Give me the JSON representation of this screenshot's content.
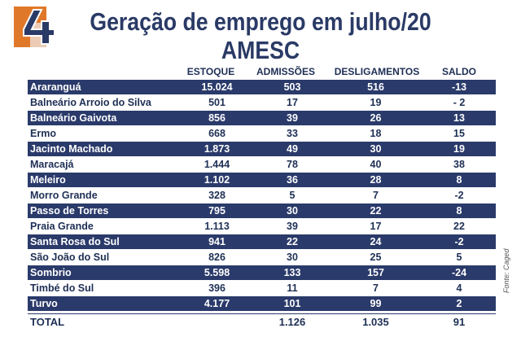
{
  "brand": {
    "logo_text": "4",
    "orange": "#e0782a",
    "blue": "#2a3a6a"
  },
  "title": {
    "line1": "Geração de emprego em julho/20",
    "line2": "AMESC"
  },
  "columns": [
    "ESTOQUE",
    "ADMISSÕES",
    "DESLIGAMENTOS",
    "SALDO"
  ],
  "rows": [
    {
      "city": "Araranguá",
      "estoque": "15.024",
      "admissoes": "503",
      "desligamentos": "516",
      "saldo": "-13"
    },
    {
      "city": "Balneário Arroio do Silva",
      "estoque": "501",
      "admissoes": "17",
      "desligamentos": "19",
      "saldo": "- 2"
    },
    {
      "city": "Balneário Gaivota",
      "estoque": "856",
      "admissoes": "39",
      "desligamentos": "26",
      "saldo": "13"
    },
    {
      "city": "Ermo",
      "estoque": "668",
      "admissoes": "33",
      "desligamentos": "18",
      "saldo": "15"
    },
    {
      "city": "Jacinto Machado",
      "estoque": "1.873",
      "admissoes": "49",
      "desligamentos": "30",
      "saldo": "19"
    },
    {
      "city": "Maracajá",
      "estoque": "1.444",
      "admissoes": "78",
      "desligamentos": "40",
      "saldo": "38"
    },
    {
      "city": "Meleiro",
      "estoque": "1.102",
      "admissoes": "36",
      "desligamentos": "28",
      "saldo": "8"
    },
    {
      "city": "Morro Grande",
      "estoque": "328",
      "admissoes": "5",
      "desligamentos": "7",
      "saldo": "-2"
    },
    {
      "city": "Passo de Torres",
      "estoque": "795",
      "admissoes": "30",
      "desligamentos": "22",
      "saldo": "8"
    },
    {
      "city": "Praia Grande",
      "estoque": "1.113",
      "admissoes": "39",
      "desligamentos": "17",
      "saldo": "22"
    },
    {
      "city": "Santa Rosa do Sul",
      "estoque": "941",
      "admissoes": "22",
      "desligamentos": "24",
      "saldo": "-2"
    },
    {
      "city": "São João do Sul",
      "estoque": "826",
      "admissoes": "30",
      "desligamentos": "25",
      "saldo": "5"
    },
    {
      "city": "Sombrio",
      "estoque": "5.598",
      "admissoes": "133",
      "desligamentos": "157",
      "saldo": "-24"
    },
    {
      "city": "Timbé do Sul",
      "estoque": "396",
      "admissoes": "11",
      "desligamentos": "7",
      "saldo": "4"
    },
    {
      "city": "Turvo",
      "estoque": "4.177",
      "admissoes": "101",
      "desligamentos": "99",
      "saldo": "2"
    }
  ],
  "total": {
    "label": "TOTAL",
    "admissoes": "1.126",
    "desligamentos": "1.035",
    "saldo": "91"
  },
  "source": "Fonte: Caged"
}
